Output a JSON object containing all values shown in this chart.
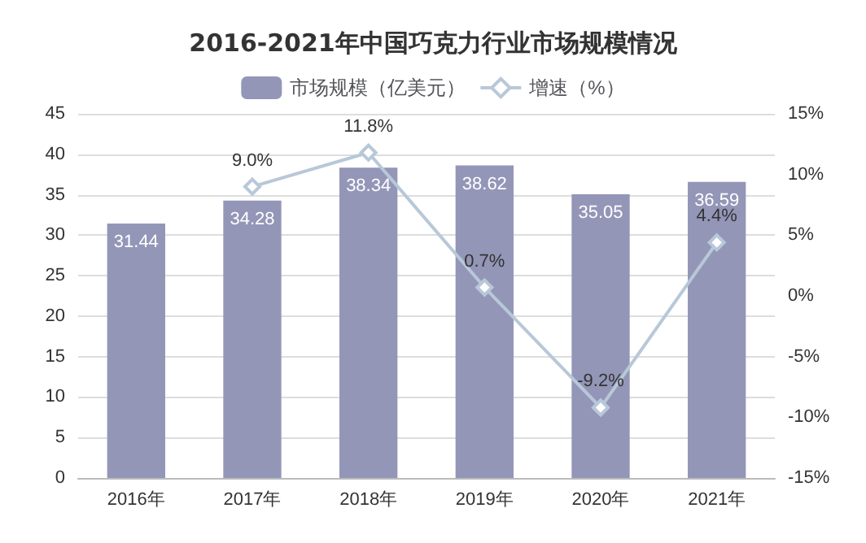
{
  "chart_data": {
    "type": "bar",
    "title": "2016-2021年中国巧克力行业市场规模情况",
    "categories": [
      "2016年",
      "2017年",
      "2018年",
      "2019年",
      "2020年",
      "2021年"
    ],
    "series": [
      {
        "name": "市场规模（亿美元）",
        "color": "#9496b8",
        "values": [
          31.44,
          34.28,
          38.34,
          38.62,
          35.05,
          36.59
        ],
        "value_labels": [
          "31.44",
          "34.28",
          "38.34",
          "38.62",
          "35.05",
          "36.59"
        ]
      },
      {
        "name": "增速（%）",
        "type": "line",
        "axis": "y2",
        "color": "#b8c8d8",
        "marker": "diamond",
        "values": [
          null,
          9.0,
          11.8,
          0.7,
          -9.2,
          4.4
        ],
        "value_labels": [
          null,
          "9.0%",
          "11.8%",
          "0.7%",
          "-9.2%",
          "4.4%"
        ]
      }
    ],
    "ylim": [
      0,
      45
    ],
    "yticks": [
      0,
      5,
      10,
      15,
      20,
      25,
      30,
      35,
      40,
      45
    ],
    "y2lim": [
      -15,
      15
    ],
    "y2ticks": [
      {
        "value": -15,
        "label": "-15%"
      },
      {
        "value": -10,
        "label": "-10%"
      },
      {
        "value": -5,
        "label": "-5%"
      },
      {
        "value": 0,
        "label": "0%"
      },
      {
        "value": 5,
        "label": "5%"
      },
      {
        "value": 10,
        "label": "10%"
      },
      {
        "value": 15,
        "label": "15%"
      }
    ],
    "grid": "y",
    "legend": "top"
  }
}
